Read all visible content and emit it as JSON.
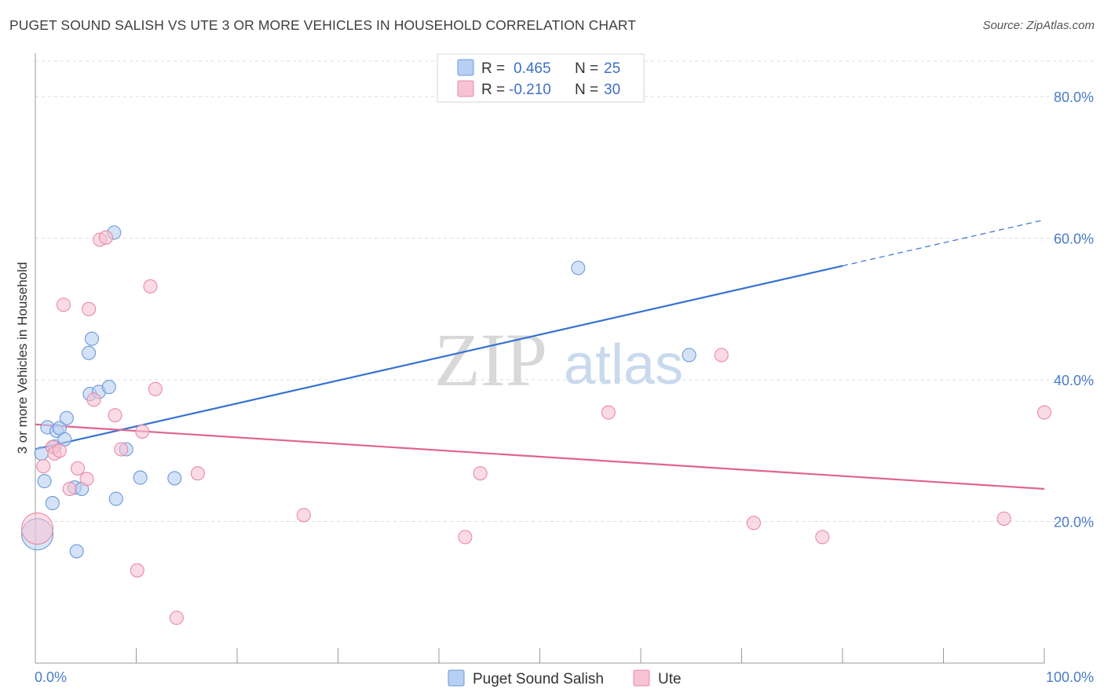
{
  "header": {
    "title": "PUGET SOUND SALISH VS UTE 3 OR MORE VEHICLES IN HOUSEHOLD CORRELATION CHART",
    "source": "Source: ZipAtlas.com"
  },
  "watermark": {
    "zip": "ZIP",
    "atlas": "atlas"
  },
  "colors": {
    "blue_fill": "#b7cff2",
    "blue_stroke": "#6b9ad8",
    "blue_line": "#3572d0",
    "pink_fill": "#f7c3d2",
    "pink_stroke": "#e98aa7",
    "pink_line": "#e0648f",
    "grid": "#dcdcdc",
    "axis": "#999999"
  },
  "legend": {
    "rows": [
      {
        "r_label": "R = ",
        "r_value": "0.465",
        "n_label": "N = ",
        "n_value": "25"
      },
      {
        "r_label": "R = ",
        "r_value": "-0.210",
        "n_label": "N = ",
        "n_value": "30"
      }
    ]
  },
  "chart_data": {
    "type": "scatter",
    "title": "PUGET SOUND SALISH VS UTE 3 OR MORE VEHICLES IN HOUSEHOLD CORRELATION CHART",
    "xlabel": "",
    "ylabel": "3 or more Vehicles in Household",
    "xlim": [
      0,
      100
    ],
    "ylim": [
      0,
      85
    ],
    "x_tick_labels": {
      "left": "0.0%",
      "right": "100.0%"
    },
    "y_ticks": [
      {
        "value": 20,
        "label": "20.0%"
      },
      {
        "value": 40,
        "label": "40.0%"
      },
      {
        "value": 60,
        "label": "60.0%"
      },
      {
        "value": 80,
        "label": "80.0%"
      }
    ],
    "grid": true,
    "legend_position": "top-center",
    "series": [
      {
        "name": "Puget Sound Salish",
        "color": "blue",
        "trend": {
          "x0": 0,
          "y0": 30.2,
          "x1": 80,
          "y1": 56.1,
          "dash_x1": 100,
          "dash_y1": 62.6
        },
        "points": [
          {
            "x": 0.2,
            "y": 18.2,
            "big": true
          },
          {
            "x": 0.6,
            "y": 29.6
          },
          {
            "x": 0.9,
            "y": 25.7
          },
          {
            "x": 1.2,
            "y": 33.3
          },
          {
            "x": 1.7,
            "y": 22.6
          },
          {
            "x": 1.9,
            "y": 30.6
          },
          {
            "x": 2.1,
            "y": 32.8
          },
          {
            "x": 2.4,
            "y": 33.2
          },
          {
            "x": 2.9,
            "y": 31.6
          },
          {
            "x": 3.1,
            "y": 34.6
          },
          {
            "x": 3.9,
            "y": 24.8
          },
          {
            "x": 4.1,
            "y": 15.8
          },
          {
            "x": 4.6,
            "y": 24.6
          },
          {
            "x": 5.3,
            "y": 43.8
          },
          {
            "x": 5.4,
            "y": 38.0
          },
          {
            "x": 5.6,
            "y": 45.8
          },
          {
            "x": 6.3,
            "y": 38.3
          },
          {
            "x": 7.3,
            "y": 39.0
          },
          {
            "x": 7.8,
            "y": 60.8
          },
          {
            "x": 8.0,
            "y": 23.2
          },
          {
            "x": 9.0,
            "y": 30.2
          },
          {
            "x": 10.4,
            "y": 26.2
          },
          {
            "x": 13.8,
            "y": 26.1
          },
          {
            "x": 53.8,
            "y": 55.8
          },
          {
            "x": 64.8,
            "y": 43.5
          }
        ]
      },
      {
        "name": "Ute",
        "color": "pink",
        "trend": {
          "x0": 0,
          "y0": 33.7,
          "x1": 100,
          "y1": 24.6
        },
        "points": [
          {
            "x": 0.2,
            "y": 19.0,
            "big": true
          },
          {
            "x": 0.8,
            "y": 27.8
          },
          {
            "x": 1.7,
            "y": 30.5
          },
          {
            "x": 1.9,
            "y": 29.6
          },
          {
            "x": 2.4,
            "y": 30.0
          },
          {
            "x": 2.8,
            "y": 50.6
          },
          {
            "x": 3.4,
            "y": 24.6
          },
          {
            "x": 4.2,
            "y": 27.5
          },
          {
            "x": 5.1,
            "y": 26.0
          },
          {
            "x": 5.3,
            "y": 50.0
          },
          {
            "x": 5.8,
            "y": 37.2
          },
          {
            "x": 6.4,
            "y": 59.8
          },
          {
            "x": 7.0,
            "y": 60.1
          },
          {
            "x": 7.9,
            "y": 35.0
          },
          {
            "x": 8.5,
            "y": 30.2
          },
          {
            "x": 10.1,
            "y": 13.1
          },
          {
            "x": 10.6,
            "y": 32.7
          },
          {
            "x": 11.4,
            "y": 53.2
          },
          {
            "x": 11.9,
            "y": 38.7
          },
          {
            "x": 14.0,
            "y": 6.4
          },
          {
            "x": 16.1,
            "y": 26.8
          },
          {
            "x": 26.6,
            "y": 20.9
          },
          {
            "x": 42.6,
            "y": 17.8
          },
          {
            "x": 44.1,
            "y": 26.8
          },
          {
            "x": 56.8,
            "y": 35.4
          },
          {
            "x": 68.0,
            "y": 43.5
          },
          {
            "x": 71.2,
            "y": 19.8
          },
          {
            "x": 78.0,
            "y": 17.8
          },
          {
            "x": 96.0,
            "y": 20.4
          },
          {
            "x": 100.0,
            "y": 35.4
          }
        ]
      }
    ]
  },
  "bottom_legend": [
    {
      "label": "Puget Sound Salish",
      "color": "blue"
    },
    {
      "label": "Ute",
      "color": "pink"
    }
  ]
}
